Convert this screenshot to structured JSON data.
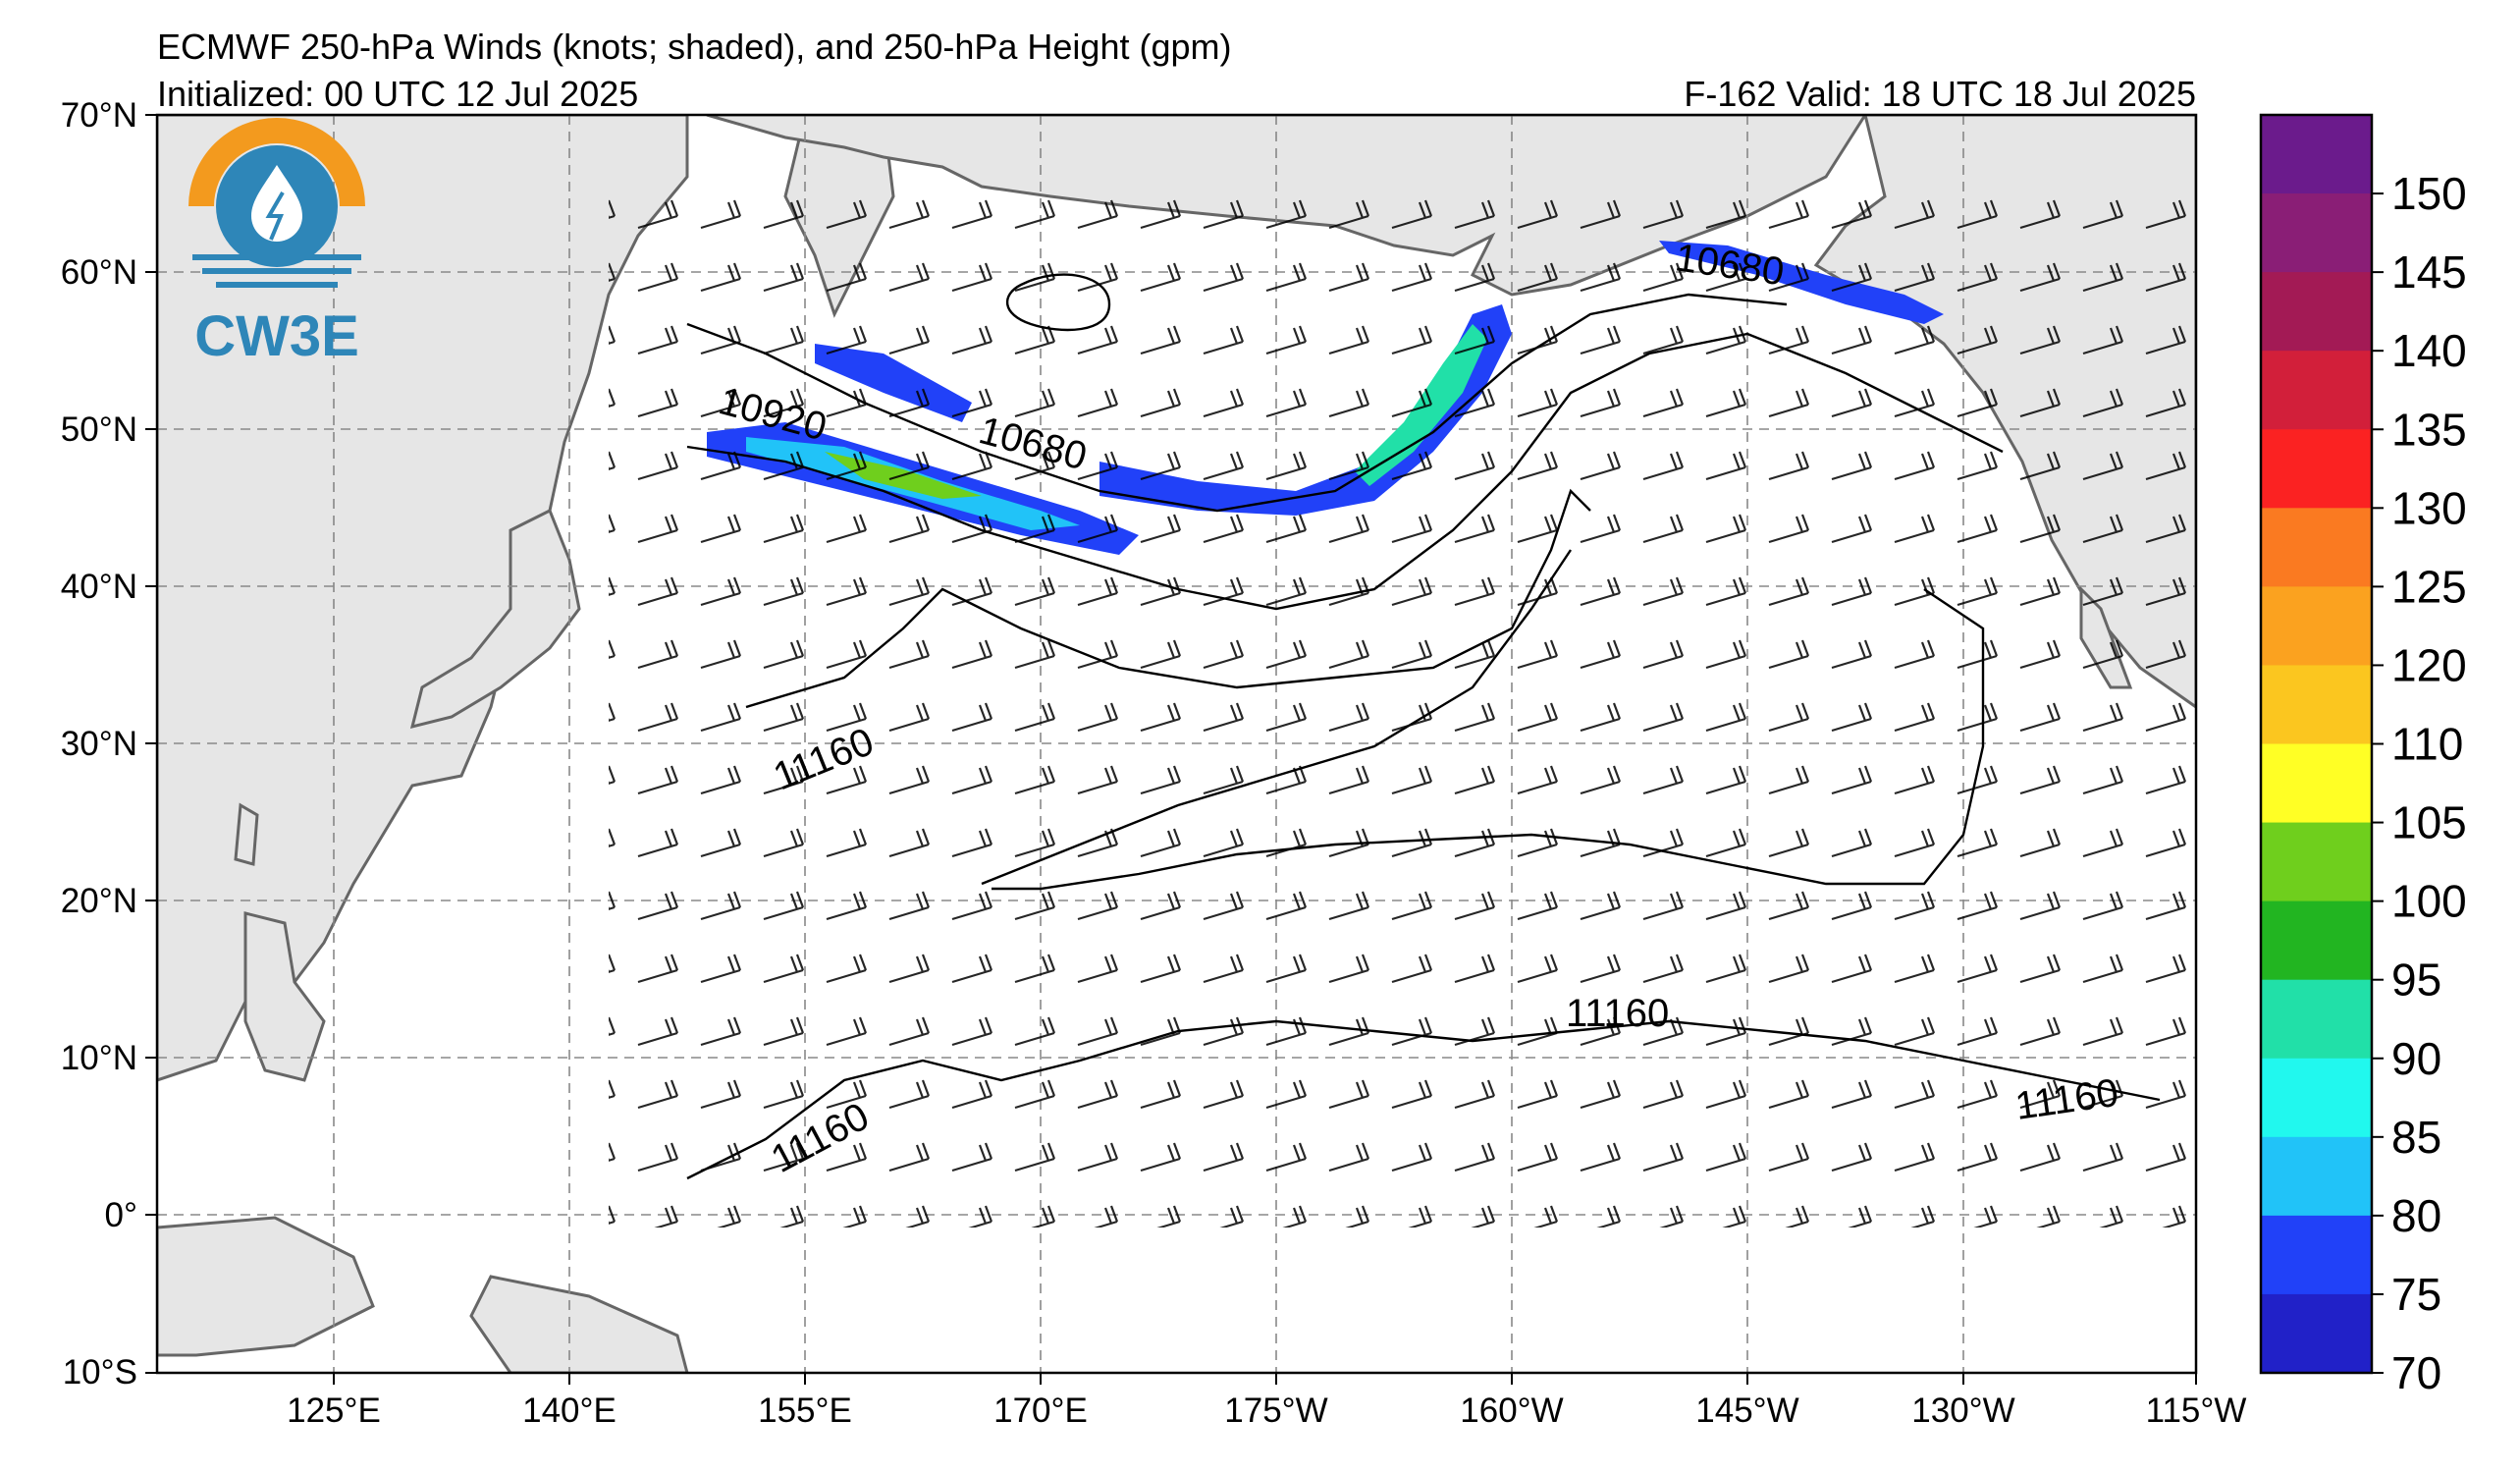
{
  "header": {
    "title": "ECMWF 250-hPa Winds (knots; shaded), and 250-hPa Height (gpm)",
    "initialized": "Initialized: 00 UTC 12 Jul 2025",
    "valid": "F-162  Valid: 18 UTC 18 Jul 2025"
  },
  "logo": {
    "text": "CW3E",
    "icon": "water-drop-sun-icon",
    "colors": {
      "orange": "#f39a1e",
      "blue": "#2e86b8"
    }
  },
  "map": {
    "lat_labels": [
      "70°N",
      "60°N",
      "50°N",
      "40°N",
      "30°N",
      "20°N",
      "10°N",
      "0°",
      "10°S"
    ],
    "lon_labels": [
      "125°E",
      "140°E",
      "155°E",
      "170°E",
      "175°W",
      "160°W",
      "145°W",
      "130°W",
      "115°W"
    ],
    "contour_labels": [
      "10920",
      "10680",
      "10680",
      "11160",
      "11160",
      "11160",
      "11160"
    ],
    "land_color": "#e6e6e6",
    "ocean_color": "#ffffff"
  },
  "colorbar": {
    "ticks": [
      "150",
      "145",
      "140",
      "135",
      "130",
      "125",
      "120",
      "110",
      "105",
      "100",
      "95",
      "90",
      "85",
      "80",
      "75",
      "70"
    ],
    "colors": [
      "#6b1b8c",
      "#8a1e76",
      "#a31a55",
      "#d21f3a",
      "#fb2222",
      "#fa7a21",
      "#fba21f",
      "#fbc61f",
      "#ffff25",
      "#6fcf1d",
      "#22b521",
      "#21e0a8",
      "#21f8ee",
      "#21c3f8",
      "#2141f8",
      "#2121c8"
    ]
  }
}
